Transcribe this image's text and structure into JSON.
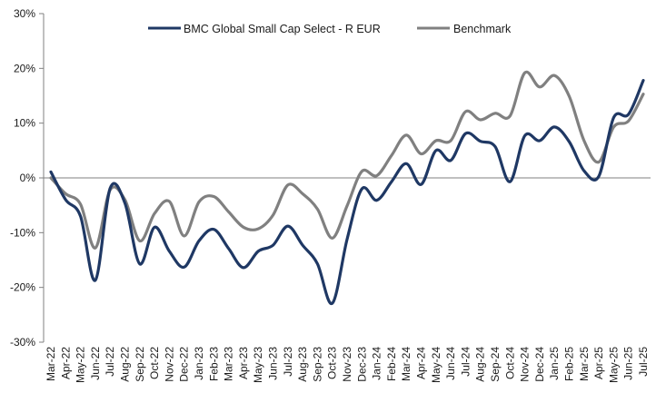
{
  "chart_data": {
    "type": "line",
    "title": "",
    "xlabel": "",
    "ylabel": "",
    "ylim": [
      -30,
      30
    ],
    "y_ticks": [
      30,
      20,
      10,
      0,
      -10,
      -20,
      -30
    ],
    "y_tick_format": "percent",
    "grid": false,
    "legend_position": "top-center",
    "categories": [
      "Mar-22",
      "Apr-22",
      "May-22",
      "Jun-22",
      "Jul-22",
      "Aug-22",
      "Sep-22",
      "Oct-22",
      "Nov-22",
      "Dec-22",
      "Jan-23",
      "Feb-23",
      "Mar-23",
      "Apr-23",
      "May-23",
      "Jun-23",
      "Jul-23",
      "Aug-23",
      "Sep-23",
      "Oct-23",
      "Nov-23",
      "Dec-23",
      "Jan-24",
      "Feb-24",
      "Mar-24",
      "Apr-24",
      "May-24",
      "Jun-24",
      "Jul-24",
      "Aug-24",
      "Sep-24",
      "Oct-24",
      "Nov-24",
      "Dec-24",
      "Jan-25",
      "Feb-25",
      "Mar-25",
      "Apr-25",
      "May-25",
      "Jun-25",
      "Jul-25"
    ],
    "series": [
      {
        "name": "BMC Global Small Cap Select - R EUR",
        "color": "#1f3864",
        "values": [
          1.1,
          -4.0,
          -7.0,
          -18.7,
          -1.9,
          -4.6,
          -15.7,
          -9.0,
          -13.4,
          -16.3,
          -11.5,
          -9.4,
          -12.9,
          -16.4,
          -13.4,
          -12.3,
          -8.8,
          -12.3,
          -15.7,
          -22.9,
          -11.2,
          -2.0,
          -4.1,
          -0.7,
          2.6,
          -1.2,
          5.0,
          3.2,
          8.1,
          6.7,
          5.7,
          -0.7,
          7.7,
          6.8,
          9.3,
          6.6,
          1.3,
          0.3,
          11.0,
          11.6,
          17.8
        ]
      },
      {
        "name": "Benchmark",
        "color": "#808080",
        "values": [
          0.0,
          -2.9,
          -4.8,
          -12.8,
          -2.2,
          -4.0,
          -11.5,
          -6.5,
          -4.3,
          -10.6,
          -4.4,
          -3.4,
          -6.2,
          -9.0,
          -9.3,
          -6.8,
          -1.3,
          -2.9,
          -5.7,
          -11.0,
          -5.1,
          1.2,
          0.4,
          4.1,
          7.8,
          4.4,
          6.8,
          6.8,
          12.1,
          10.6,
          11.8,
          11.3,
          19.2,
          16.6,
          18.7,
          14.9,
          6.8,
          2.9,
          9.3,
          10.4,
          15.3
        ]
      }
    ]
  }
}
